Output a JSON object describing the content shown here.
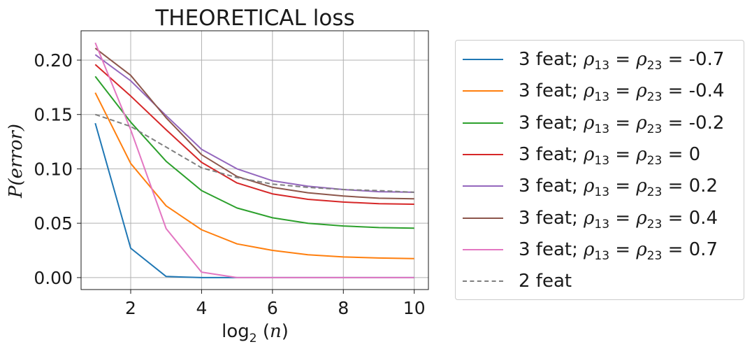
{
  "chart_data": {
    "type": "line",
    "title": "THEORETICAL loss",
    "xlabel": "log2(n)",
    "ylabel": "P(error)",
    "xlim": [
      0.6,
      10.4
    ],
    "ylim": [
      -0.011,
      0.227
    ],
    "xticks": [
      2,
      4,
      6,
      8,
      10
    ],
    "yticks": [
      0.0,
      0.05,
      0.1,
      0.15,
      0.2
    ],
    "xtick_labels": [
      "2",
      "4",
      "6",
      "8",
      "10"
    ],
    "ytick_labels": [
      "0.00",
      "0.05",
      "0.10",
      "0.15",
      "0.20"
    ],
    "grid": true,
    "legend_position": "outside-right",
    "x": [
      1,
      2,
      3,
      4,
      5,
      6,
      7,
      8,
      9,
      10
    ],
    "series": [
      {
        "label_prefix": "3 feat; ",
        "rho_value": "-0.7",
        "color": "#1f77b4",
        "dash": false,
        "values": [
          0.142,
          0.027,
          0.001,
          0.0,
          0.0,
          0.0,
          0.0,
          0.0,
          0.0,
          0.0
        ]
      },
      {
        "label_prefix": "3 feat; ",
        "rho_value": "-0.4",
        "color": "#ff7f0e",
        "dash": false,
        "values": [
          0.17,
          0.105,
          0.066,
          0.044,
          0.031,
          0.025,
          0.021,
          0.019,
          0.018,
          0.0175
        ]
      },
      {
        "label_prefix": "3 feat; ",
        "rho_value": "-0.2",
        "color": "#2ca02c",
        "dash": false,
        "values": [
          0.185,
          0.143,
          0.107,
          0.08,
          0.064,
          0.055,
          0.05,
          0.0475,
          0.046,
          0.0455
        ]
      },
      {
        "label_prefix": "3 feat; ",
        "rho_value": "0",
        "color": "#d62728",
        "dash": false,
        "values": [
          0.196,
          0.167,
          0.136,
          0.106,
          0.087,
          0.077,
          0.072,
          0.0695,
          0.068,
          0.0675
        ]
      },
      {
        "label_prefix": "3 feat; ",
        "rho_value": "0.2",
        "color": "#9467bd",
        "dash": false,
        "values": [
          0.205,
          0.181,
          0.149,
          0.118,
          0.1,
          0.089,
          0.084,
          0.081,
          0.079,
          0.0785
        ]
      },
      {
        "label_prefix": "3 feat; ",
        "rho_value": "0.4",
        "color": "#8c564b",
        "dash": false,
        "values": [
          0.211,
          0.186,
          0.147,
          0.113,
          0.093,
          0.083,
          0.078,
          0.075,
          0.073,
          0.0725
        ]
      },
      {
        "label_prefix": "3 feat; ",
        "rho_value": "0.7",
        "color": "#e377c2",
        "dash": false,
        "values": [
          0.216,
          0.136,
          0.045,
          0.005,
          0.0,
          0.0,
          0.0,
          0.0,
          0.0,
          0.0
        ]
      },
      {
        "label_prefix": "2 feat",
        "rho_value": "",
        "color": "#7f7f7f",
        "dash": true,
        "values": [
          0.15,
          0.139,
          0.12,
          0.101,
          0.092,
          0.086,
          0.083,
          0.081,
          0.08,
          0.0785
        ]
      }
    ]
  }
}
